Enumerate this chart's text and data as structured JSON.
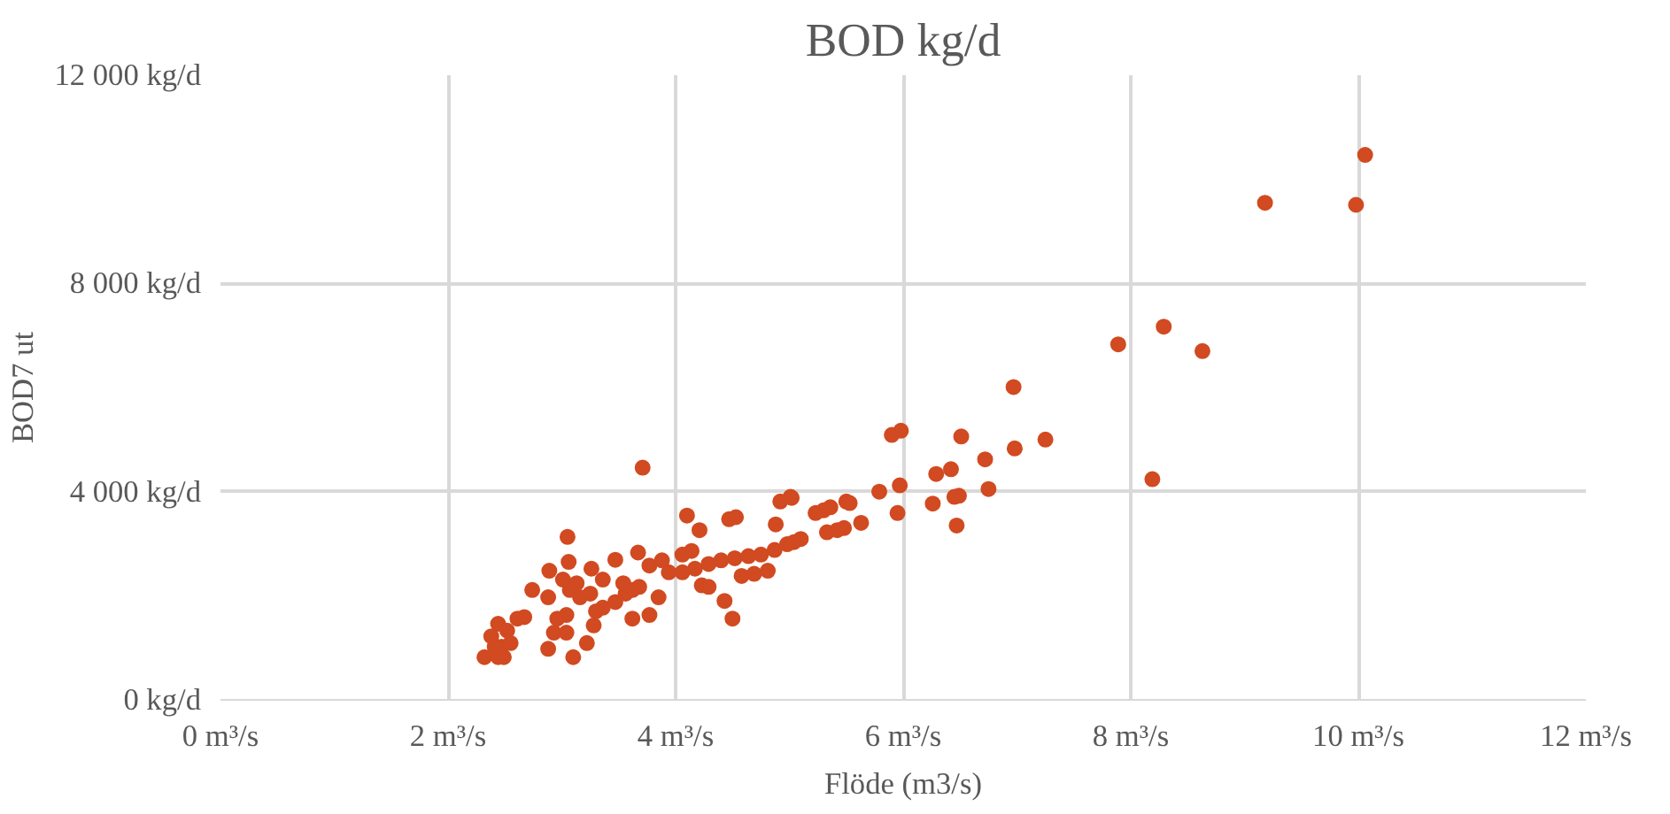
{
  "chart_data": {
    "type": "scatter",
    "title": "BOD kg/d",
    "xlabel": "Flöde (m3/s)",
    "ylabel": "BOD7 ut",
    "marker": "circle",
    "grid": true,
    "xlim": [
      0,
      12
    ],
    "xticks": [
      {
        "value": 0,
        "label": "0 m³/s"
      },
      {
        "value": 2,
        "label": "2 m³/s"
      },
      {
        "value": 4,
        "label": "4 m³/s"
      },
      {
        "value": 6,
        "label": "6 m³/s"
      },
      {
        "value": 8,
        "label": "8 m³/s"
      },
      {
        "value": 10,
        "label": "10 m³/s"
      },
      {
        "value": 12,
        "label": "12 m³/s"
      }
    ],
    "ylim": [
      0,
      12000
    ],
    "yticks": [
      {
        "value": 0,
        "label": "0 kg/d"
      },
      {
        "value": 4000,
        "label": "4 000 kg/d"
      },
      {
        "value": 8000,
        "label": "8 000 kg/d"
      },
      {
        "value": 12000,
        "label": "12 000 kg/d"
      }
    ],
    "series": [
      {
        "color": "#d24a21",
        "x": [
          10.06,
          9.98,
          9.18,
          8.29,
          7.89,
          8.63,
          8.19,
          6.97,
          6.98,
          7.25,
          6.75,
          6.72,
          6.51,
          5.9,
          5.98,
          6.29,
          6.42,
          5.97,
          5.79,
          6.49,
          6.45,
          6.26,
          5.95,
          6.47,
          5.63,
          5.5,
          5.53,
          5.36,
          5.3,
          5.23,
          5.48,
          5.42,
          5.33,
          5.1,
          5.04,
          5.01,
          3.71,
          4.1,
          4.21,
          4.47,
          4.53,
          4.88,
          4.92,
          5.02,
          3.05,
          3.67,
          3.47,
          3.06,
          2.89,
          3.26,
          3.36,
          3.77,
          3.88,
          4.06,
          4.14,
          4.29,
          4.4,
          4.52,
          4.64,
          4.75,
          4.87,
          4.98,
          3.94,
          4.06,
          4.17,
          4.23,
          4.29,
          4.58,
          4.69,
          4.81,
          4.43,
          4.5,
          3.85,
          3.77,
          3.62,
          3.68,
          3.56,
          3.47,
          3.36,
          3.28,
          3.25,
          3.16,
          3.13,
          3.07,
          3.01,
          3.04,
          2.96,
          2.93,
          3.1,
          2.88,
          3.04,
          3.22,
          3.3,
          2.88,
          2.74,
          2.67,
          2.61,
          2.44,
          2.52,
          2.38,
          2.32,
          2.44,
          2.49,
          2.47,
          2.55,
          2.41,
          3.54,
          3.62
        ],
        "values": [
          10470,
          9510,
          9550,
          7170,
          6830,
          6700,
          4240,
          6010,
          4830,
          5000,
          4050,
          4620,
          5060,
          5090,
          5170,
          4340,
          4430,
          4120,
          4000,
          3920,
          3900,
          3770,
          3590,
          3350,
          3400,
          3810,
          3780,
          3700,
          3640,
          3590,
          3300,
          3260,
          3220,
          3090,
          3030,
          3900,
          4460,
          3540,
          3260,
          3470,
          3510,
          3370,
          3810,
          3880,
          3130,
          2830,
          2690,
          2650,
          2480,
          2520,
          2310,
          2580,
          2680,
          2790,
          2860,
          2610,
          2680,
          2720,
          2760,
          2790,
          2880,
          2990,
          2450,
          2450,
          2520,
          2200,
          2170,
          2380,
          2420,
          2480,
          1900,
          1560,
          1970,
          1630,
          1560,
          2170,
          2040,
          1880,
          1770,
          1430,
          2040,
          1970,
          2240,
          2110,
          2310,
          1630,
          1560,
          1290,
          820,
          980,
          1290,
          1090,
          1700,
          1970,
          2110,
          1590,
          1560,
          1460,
          1330,
          1220,
          820,
          820,
          820,
          1020,
          1090,
          1020,
          2240,
          2110
        ]
      }
    ]
  }
}
